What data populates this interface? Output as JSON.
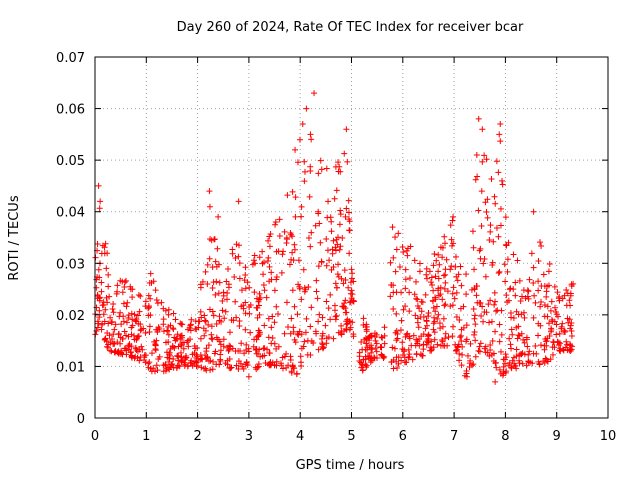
{
  "chart_data": {
    "type": "scatter",
    "title": "Day 260 of 2024, Rate Of TEC Index for receiver bcar",
    "xlabel": "GPS time / hours",
    "ylabel": "ROTI / TECUs",
    "xlim": [
      0,
      10
    ],
    "ylim": [
      0,
      0.07
    ],
    "grid": true,
    "x_ticks": [
      0,
      1,
      2,
      3,
      4,
      5,
      6,
      7,
      8,
      9,
      10
    ],
    "x_tick_labels": [
      "0",
      "1",
      "2",
      "3",
      "4",
      "5",
      "6",
      "7",
      "8",
      "9",
      "10"
    ],
    "y_ticks": [
      0,
      0.01,
      0.02,
      0.03,
      0.04,
      0.05,
      0.06,
      0.07
    ],
    "y_tick_labels": [
      "0",
      "0.01",
      "0.02",
      "0.03",
      "0.04",
      "0.05",
      "0.06",
      "0.07"
    ],
    "marker": "plus",
    "series": [
      {
        "name": "ROTI",
        "color": "#ff0000",
        "envelope": [
          {
            "x": 0.0,
            "low": 0.016,
            "high": 0.031
          },
          {
            "x": 0.1,
            "low": 0.015,
            "high": 0.045
          },
          {
            "x": 0.3,
            "low": 0.013,
            "high": 0.026
          },
          {
            "x": 0.6,
            "low": 0.012,
            "high": 0.027
          },
          {
            "x": 0.9,
            "low": 0.011,
            "high": 0.024
          },
          {
            "x": 1.1,
            "low": 0.009,
            "high": 0.03
          },
          {
            "x": 1.4,
            "low": 0.009,
            "high": 0.022
          },
          {
            "x": 1.7,
            "low": 0.01,
            "high": 0.019
          },
          {
            "x": 2.0,
            "low": 0.01,
            "high": 0.02
          },
          {
            "x": 2.2,
            "low": 0.009,
            "high": 0.044
          },
          {
            "x": 2.5,
            "low": 0.01,
            "high": 0.027
          },
          {
            "x": 2.8,
            "low": 0.009,
            "high": 0.042
          },
          {
            "x": 3.0,
            "low": 0.009,
            "high": 0.032
          },
          {
            "x": 3.3,
            "low": 0.01,
            "high": 0.033
          },
          {
            "x": 3.6,
            "low": 0.01,
            "high": 0.04
          },
          {
            "x": 3.9,
            "low": 0.008,
            "high": 0.049
          },
          {
            "x": 4.1,
            "low": 0.011,
            "high": 0.06
          },
          {
            "x": 4.3,
            "low": 0.013,
            "high": 0.058
          },
          {
            "x": 4.6,
            "low": 0.014,
            "high": 0.046
          },
          {
            "x": 4.9,
            "low": 0.017,
            "high": 0.055
          },
          {
            "x": 5.0,
            "low": 0.017,
            "high": 0.03
          },
          {
            "x": 5.2,
            "low": 0.009,
            "high": 0.02
          },
          {
            "x": 5.4,
            "low": 0.011,
            "high": 0.017
          },
          {
            "x": 5.6,
            "low": 0.012,
            "high": 0.016
          },
          {
            "x": 5.8,
            "low": 0.009,
            "high": 0.037
          },
          {
            "x": 6.1,
            "low": 0.011,
            "high": 0.034
          },
          {
            "x": 6.4,
            "low": 0.012,
            "high": 0.031
          },
          {
            "x": 6.7,
            "low": 0.014,
            "high": 0.033
          },
          {
            "x": 7.0,
            "low": 0.014,
            "high": 0.039
          },
          {
            "x": 7.2,
            "low": 0.008,
            "high": 0.028
          },
          {
            "x": 7.5,
            "low": 0.012,
            "high": 0.057
          },
          {
            "x": 7.7,
            "low": 0.012,
            "high": 0.048
          },
          {
            "x": 7.9,
            "low": 0.008,
            "high": 0.057
          },
          {
            "x": 8.1,
            "low": 0.009,
            "high": 0.034
          },
          {
            "x": 8.4,
            "low": 0.01,
            "high": 0.03
          },
          {
            "x": 8.6,
            "low": 0.01,
            "high": 0.04
          },
          {
            "x": 8.9,
            "low": 0.011,
            "high": 0.029
          },
          {
            "x": 9.1,
            "low": 0.013,
            "high": 0.026
          },
          {
            "x": 9.3,
            "low": 0.013,
            "high": 0.027
          }
        ],
        "gaps": [
          [
            5.05,
            5.15
          ],
          [
            5.5,
            5.55
          ],
          [
            5.65,
            5.75
          ]
        ],
        "notable_points": [
          {
            "x": 0.07,
            "y": 0.045
          },
          {
            "x": 0.1,
            "y": 0.042
          },
          {
            "x": 2.23,
            "y": 0.044
          },
          {
            "x": 2.4,
            "y": 0.039
          },
          {
            "x": 2.8,
            "y": 0.042
          },
          {
            "x": 3.0,
            "y": 0.008
          },
          {
            "x": 3.9,
            "y": 0.052
          },
          {
            "x": 4.05,
            "y": 0.057
          },
          {
            "x": 4.12,
            "y": 0.06
          },
          {
            "x": 4.27,
            "y": 0.063
          },
          {
            "x": 4.2,
            "y": 0.055
          },
          {
            "x": 4.9,
            "y": 0.056
          },
          {
            "x": 5.8,
            "y": 0.037
          },
          {
            "x": 6.98,
            "y": 0.039
          },
          {
            "x": 7.25,
            "y": 0.008
          },
          {
            "x": 7.48,
            "y": 0.058
          },
          {
            "x": 7.55,
            "y": 0.056
          },
          {
            "x": 7.9,
            "y": 0.057
          },
          {
            "x": 7.88,
            "y": 0.055
          },
          {
            "x": 7.8,
            "y": 0.007
          },
          {
            "x": 8.55,
            "y": 0.04
          },
          {
            "x": 9.32,
            "y": 0.026
          }
        ]
      }
    ]
  }
}
